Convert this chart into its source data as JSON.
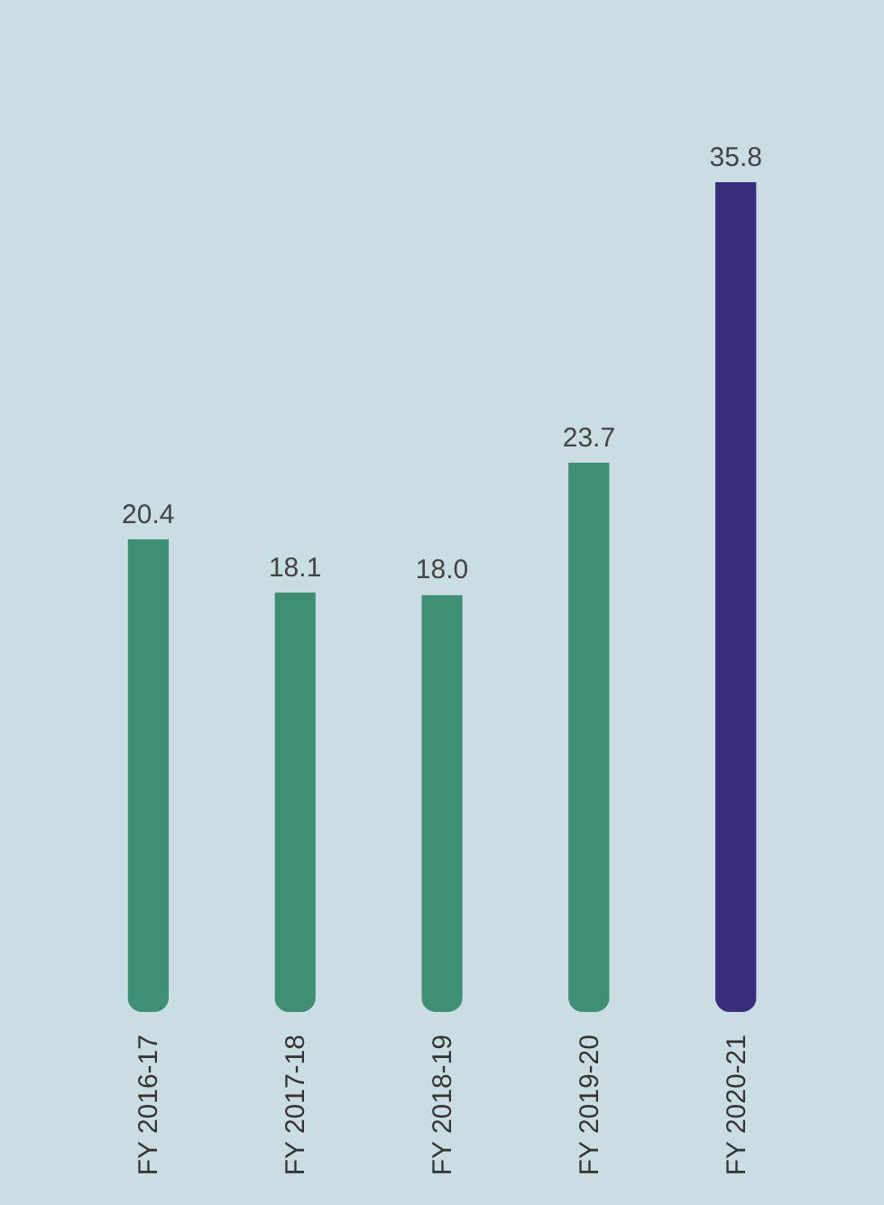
{
  "chart_data": {
    "type": "bar",
    "categories": [
      "FY 2016-17",
      "FY 2017-18",
      "FY 2018-19",
      "FY 2019-20",
      "FY 2020-21"
    ],
    "values": [
      20.4,
      18.1,
      18.0,
      23.7,
      35.8
    ],
    "value_labels": [
      "20.4",
      "18.1",
      "18.0",
      "23.7",
      "35.8"
    ],
    "colors": [
      "#3f8f74",
      "#3f8f74",
      "#3f8f74",
      "#3f8f74",
      "#3b2d7e"
    ],
    "grid": false,
    "legend": false
  }
}
